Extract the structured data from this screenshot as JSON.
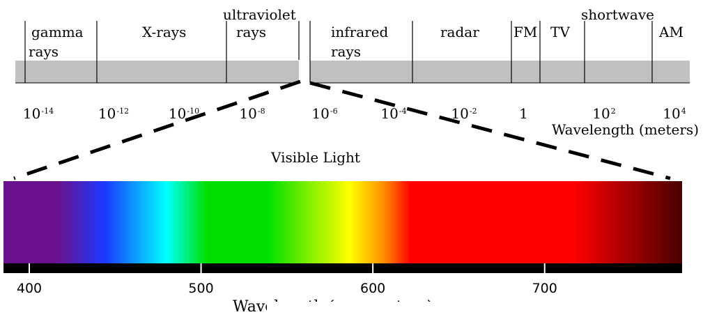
{
  "em_spectrum": {
    "bands": [
      {
        "line1": "gamma",
        "line2": "rays"
      },
      {
        "line1": "X-rays",
        "line2": ""
      },
      {
        "line1": "ultraviolet",
        "line2": "rays"
      },
      {
        "line1": "infrared",
        "line2": "rays"
      },
      {
        "line1": "radar",
        "line2": ""
      },
      {
        "line1": "FM",
        "line2": ""
      },
      {
        "line1": "TV",
        "line2": ""
      },
      {
        "line1": "shortwave",
        "line2": ""
      },
      {
        "line1": "AM",
        "line2": ""
      }
    ],
    "scale_ticks": [
      {
        "base": "10",
        "exp": "-14"
      },
      {
        "base": "10",
        "exp": "-12"
      },
      {
        "base": "10",
        "exp": "-10"
      },
      {
        "base": "10",
        "exp": "-8"
      },
      {
        "base": "10",
        "exp": "-6"
      },
      {
        "base": "10",
        "exp": "-4"
      },
      {
        "base": "10",
        "exp": "-2"
      },
      {
        "base": "1",
        "exp": ""
      },
      {
        "base": "10",
        "exp": "2"
      },
      {
        "base": "10",
        "exp": "4"
      }
    ],
    "axis_label": "Wavelength (meters)"
  },
  "visible": {
    "title": "Visible Light",
    "range_nm": [
      385,
      780
    ],
    "ticks_nm": [
      400,
      500,
      600,
      700
    ],
    "axis_label": "Wavelength (nanometers)",
    "colors": {
      "violet": "#6b118f",
      "blue": "#1a3aff",
      "cyan": "#00ffff",
      "green": "#00e000",
      "yellow": "#ffff00",
      "orange": "#ff9000",
      "red": "#ff0000",
      "deep_red": "#4a0000"
    }
  }
}
